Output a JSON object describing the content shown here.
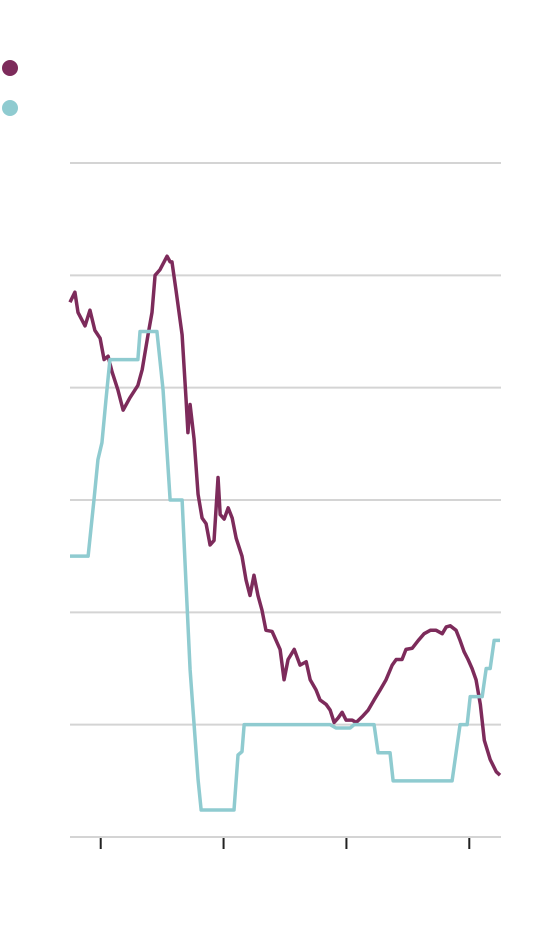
{
  "chart_data": {
    "type": "line",
    "xlim": [
      0,
      14
    ],
    "xticks": [
      1,
      5,
      9,
      13
    ],
    "ylim": [
      0,
      6
    ],
    "yticks": [
      0,
      1,
      2,
      3,
      4,
      5,
      6
    ],
    "grid": true,
    "series": [
      {
        "color": "#7d2b5b",
        "x": [
          0,
          0.16,
          0.26,
          0.49,
          0.65,
          0.81,
          0.98,
          1.11,
          1.24,
          1.37,
          1.56,
          1.73,
          1.95,
          2.21,
          2.35,
          2.54,
          2.67,
          2.77,
          2.93,
          3.16,
          3.26,
          3.32,
          3.45,
          3.65,
          3.78,
          3.84,
          3.91,
          4.04,
          4.17,
          4.3,
          4.43,
          4.56,
          4.69,
          4.82,
          4.89,
          5.02,
          5.15,
          5.28,
          5.41,
          5.6,
          5.73,
          5.86,
          5.99,
          6.12,
          6.25,
          6.38,
          6.58,
          6.71,
          6.84,
          6.97,
          7.1,
          7.3,
          7.49,
          7.69,
          7.82,
          8.01,
          8.14,
          8.34,
          8.47,
          8.6,
          8.73,
          8.86,
          8.99,
          9.19,
          9.32,
          9.51,
          9.71,
          9.9,
          10.1,
          10.29,
          10.49,
          10.62,
          10.81,
          10.94,
          11.14,
          11.34,
          11.53,
          11.73,
          11.92,
          12.12,
          12.25,
          12.38,
          12.57,
          12.7,
          12.83,
          12.96,
          13.09,
          13.22,
          13.36,
          13.49,
          13.68,
          13.88,
          14
        ],
        "values": [
          4.76,
          4.85,
          4.67,
          4.55,
          4.69,
          4.51,
          4.44,
          4.25,
          4.28,
          4.14,
          3.98,
          3.8,
          3.91,
          4.02,
          4.16,
          4.47,
          4.67,
          5,
          5.05,
          5.17,
          5.12,
          5.12,
          4.87,
          4.47,
          3.89,
          3.6,
          3.85,
          3.54,
          3.05,
          2.84,
          2.79,
          2.6,
          2.64,
          3.2,
          2.87,
          2.83,
          2.93,
          2.84,
          2.66,
          2.5,
          2.29,
          2.15,
          2.33,
          2.15,
          2.02,
          1.84,
          1.83,
          1.75,
          1.67,
          1.4,
          1.58,
          1.67,
          1.53,
          1.56,
          1.4,
          1.31,
          1.22,
          1.18,
          1.13,
          1.02,
          1.06,
          1.11,
          1.04,
          1.04,
          1.02,
          1.07,
          1.13,
          1.22,
          1.31,
          1.4,
          1.53,
          1.58,
          1.58,
          1.67,
          1.68,
          1.75,
          1.81,
          1.84,
          1.84,
          1.81,
          1.87,
          1.88,
          1.84,
          1.75,
          1.65,
          1.58,
          1.5,
          1.4,
          1.18,
          0.86,
          0.69,
          0.58,
          0.55
        ]
      },
      {
        "color": "#8fcbd0",
        "x": [
          0,
          0.59,
          0.78,
          0.91,
          1.04,
          1.17,
          1.3,
          2.21,
          2.28,
          2.83,
          3.03,
          3.26,
          3.65,
          3.78,
          3.91,
          4.04,
          4.17,
          4.27,
          5.34,
          5.47,
          5.6,
          5.67,
          8.47,
          8.66,
          9.12,
          9.25,
          9.9,
          10.03,
          10.42,
          10.52,
          12.44,
          12.57,
          12.7,
          12.93,
          13.03,
          13.42,
          13.55,
          13.68,
          13.81,
          14
        ],
        "values": [
          2.5,
          2.5,
          3,
          3.36,
          3.51,
          3.89,
          4.25,
          4.25,
          4.5,
          4.5,
          3.98,
          3,
          3,
          2.24,
          1.49,
          1,
          0.51,
          0.24,
          0.24,
          0.73,
          0.76,
          1,
          1,
          0.97,
          0.97,
          1,
          1,
          0.75,
          0.75,
          0.5,
          0.5,
          0.75,
          1,
          1,
          1.25,
          1.25,
          1.5,
          1.5,
          1.75,
          1.75
        ]
      }
    ]
  }
}
